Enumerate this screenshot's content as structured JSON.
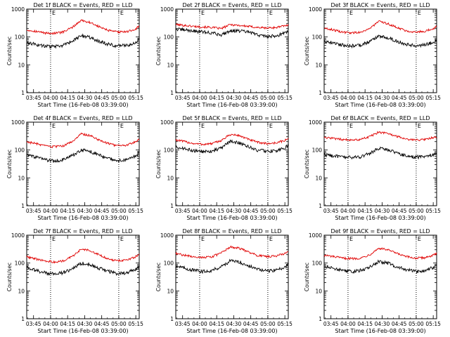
{
  "chart_data": {
    "type": "line",
    "scale": "log",
    "ylim": [
      1,
      1000
    ],
    "xlim": [
      "03:39",
      "05:18"
    ],
    "ylabel": "Counts/sec",
    "xlabel": "Start Time (16-Feb-08 03:39:00)",
    "y_tick_labels": [
      "1",
      "10",
      "100",
      "1000"
    ],
    "x_tick_labels": [
      "03:45",
      "04:00",
      "04:15",
      "04:30",
      "04:45",
      "05:00",
      "05:15"
    ],
    "x_tick_minutes": [
      6,
      21,
      36,
      51,
      66,
      81,
      96
    ],
    "colors": {
      "events": "#000000",
      "lld": "#e00000",
      "axis": "#000000",
      "marker": "#000000"
    },
    "panels": [
      {
        "title": "Det 1f BLACK = Events, RED = LLD",
        "marker_left": "E",
        "marker_right": "E",
        "marker_left_min": 21,
        "marker_right_min": 81,
        "t": [
          0,
          8,
          16,
          24,
          32,
          40,
          48,
          56,
          64,
          72,
          80,
          88,
          96,
          99
        ],
        "events": [
          62,
          55,
          48,
          45,
          50,
          70,
          110,
          95,
          70,
          55,
          48,
          50,
          62,
          85
        ],
        "lld": [
          180,
          160,
          140,
          135,
          150,
          220,
          400,
          330,
          230,
          170,
          150,
          155,
          190,
          260
        ]
      },
      {
        "title": "Det 2f BLACK = Events, RED = LLD",
        "marker_left": "E",
        "marker_right": "E",
        "marker_left_min": 21,
        "marker_right_min": 81,
        "t": [
          0,
          8,
          16,
          24,
          32,
          40,
          48,
          56,
          64,
          72,
          80,
          88,
          96,
          99
        ],
        "events": [
          190,
          180,
          165,
          150,
          140,
          120,
          170,
          165,
          150,
          120,
          105,
          110,
          140,
          160
        ],
        "lld": [
          280,
          260,
          240,
          230,
          220,
          200,
          280,
          260,
          240,
          220,
          210,
          220,
          250,
          270
        ]
      },
      {
        "title": "Det 3f BLACK = Events, RED = LLD",
        "marker_left": "E",
        "marker_right": "E",
        "marker_left_min": 21,
        "marker_right_min": 81,
        "t": [
          0,
          8,
          16,
          24,
          32,
          40,
          48,
          56,
          64,
          72,
          80,
          88,
          96,
          99
        ],
        "events": [
          72,
          62,
          52,
          48,
          52,
          68,
          110,
          95,
          70,
          56,
          50,
          52,
          65,
          80
        ],
        "lld": [
          210,
          180,
          150,
          140,
          150,
          200,
          360,
          300,
          220,
          170,
          150,
          160,
          200,
          240
        ]
      },
      {
        "title": "Det 4f BLACK = Events, RED = LLD",
        "marker_left": "E",
        "marker_right": "E",
        "marker_left_min": 21,
        "marker_right_min": 81,
        "t": [
          0,
          8,
          16,
          24,
          32,
          40,
          48,
          56,
          64,
          72,
          80,
          88,
          96,
          99
        ],
        "events": [
          68,
          55,
          45,
          40,
          45,
          62,
          100,
          90,
          65,
          50,
          42,
          45,
          60,
          80
        ],
        "lld": [
          200,
          170,
          140,
          130,
          140,
          200,
          380,
          330,
          230,
          170,
          140,
          150,
          200,
          250
        ]
      },
      {
        "title": "Det 5f BLACK = Events, RED = LLD",
        "marker_left": "E",
        "marker_right": "E",
        "marker_left_min": 21,
        "marker_right_min": 81,
        "t": [
          0,
          8,
          16,
          24,
          32,
          40,
          48,
          56,
          64,
          72,
          80,
          88,
          96,
          99
        ],
        "events": [
          130,
          110,
          95,
          88,
          92,
          120,
          200,
          180,
          130,
          100,
          90,
          95,
          120,
          150
        ],
        "lld": [
          230,
          200,
          170,
          160,
          170,
          220,
          360,
          330,
          240,
          190,
          170,
          180,
          220,
          260
        ]
      },
      {
        "title": "Det 6f BLACK = Events, RED = LLD",
        "marker_left": "E",
        "marker_right": "E",
        "marker_left_min": 21,
        "marker_right_min": 81,
        "t": [
          0,
          8,
          16,
          24,
          32,
          40,
          48,
          56,
          64,
          72,
          80,
          88,
          96,
          99
        ],
        "events": [
          70,
          62,
          56,
          54,
          58,
          75,
          115,
          105,
          80,
          62,
          56,
          58,
          70,
          80
        ],
        "lld": [
          280,
          260,
          240,
          230,
          240,
          300,
          440,
          400,
          310,
          250,
          230,
          240,
          280,
          300
        ]
      },
      {
        "title": "Det 7f BLACK = Events, RED = LLD",
        "marker_left": "E",
        "marker_right": "E",
        "marker_left_min": 21,
        "marker_right_min": 81,
        "t": [
          0,
          8,
          16,
          24,
          32,
          40,
          48,
          56,
          64,
          72,
          80,
          88,
          96,
          99
        ],
        "events": [
          68,
          55,
          45,
          40,
          45,
          60,
          100,
          90,
          65,
          50,
          42,
          45,
          60,
          75
        ],
        "lld": [
          170,
          140,
          120,
          110,
          120,
          170,
          320,
          280,
          200,
          140,
          120,
          130,
          170,
          200
        ]
      },
      {
        "title": "Det 8f BLACK = Events, RED = LLD",
        "marker_left": "E",
        "marker_right": "E",
        "marker_left_min": 21,
        "marker_right_min": 81,
        "t": [
          0,
          8,
          16,
          24,
          32,
          40,
          48,
          56,
          64,
          72,
          80,
          88,
          96,
          99
        ],
        "events": [
          80,
          65,
          55,
          50,
          55,
          75,
          120,
          110,
          80,
          60,
          52,
          56,
          72,
          95
        ],
        "lld": [
          220,
          190,
          170,
          160,
          170,
          230,
          380,
          340,
          250,
          190,
          170,
          180,
          220,
          260
        ]
      },
      {
        "title": "Det 9f BLACK = Events, RED = LLD",
        "marker_left": "E",
        "marker_right": "E",
        "marker_left_min": 21,
        "marker_right_min": 81,
        "t": [
          0,
          8,
          16,
          24,
          32,
          40,
          48,
          56,
          64,
          72,
          80,
          88,
          96,
          99
        ],
        "events": [
          80,
          65,
          55,
          50,
          55,
          72,
          115,
          100,
          75,
          58,
          50,
          54,
          70,
          90
        ],
        "lld": [
          190,
          170,
          150,
          145,
          150,
          200,
          340,
          300,
          220,
          170,
          150,
          155,
          190,
          220
        ]
      }
    ]
  }
}
